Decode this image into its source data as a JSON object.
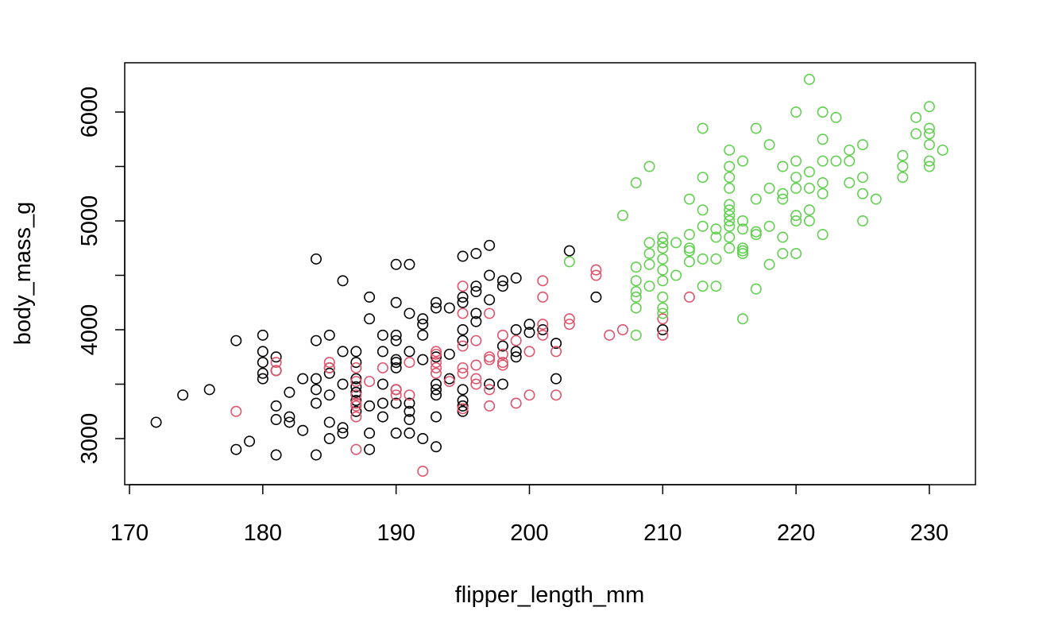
{
  "chart_data": {
    "type": "scatter",
    "title": "",
    "xlabel": "flipper_length_mm",
    "ylabel": "body_mass_g",
    "xlim": [
      170,
      232
    ],
    "ylim": [
      2600,
      6400
    ],
    "xticks": [
      170,
      180,
      190,
      200,
      210,
      220,
      230
    ],
    "yticks": [
      3000,
      4000,
      5000,
      6000
    ],
    "x_tick_labels": [
      "170",
      "180",
      "190",
      "200",
      "210",
      "220",
      "230"
    ],
    "y_tick_labels": [
      "3000",
      "4000",
      "5000",
      "6000"
    ],
    "grid": false,
    "legend": "none",
    "series": [
      {
        "color": "#000000",
        "points": [
          [
            172,
            3150
          ],
          [
            174,
            3400
          ],
          [
            176,
            3450
          ],
          [
            178,
            3900
          ],
          [
            178,
            2900
          ],
          [
            179,
            2975
          ],
          [
            180,
            3950
          ],
          [
            180,
            3800
          ],
          [
            180,
            3700
          ],
          [
            180,
            3600
          ],
          [
            180,
            3550
          ],
          [
            181,
            3750
          ],
          [
            181,
            3625
          ],
          [
            181,
            3300
          ],
          [
            181,
            3175
          ],
          [
            181,
            2850
          ],
          [
            182,
            3425
          ],
          [
            182,
            3200
          ],
          [
            182,
            3150
          ],
          [
            183,
            3550
          ],
          [
            183,
            3075
          ],
          [
            184,
            4650
          ],
          [
            184,
            3900
          ],
          [
            184,
            3550
          ],
          [
            184,
            3450
          ],
          [
            184,
            3325
          ],
          [
            184,
            2850
          ],
          [
            185,
            3950
          ],
          [
            185,
            3650
          ],
          [
            185,
            3600
          ],
          [
            185,
            3400
          ],
          [
            185,
            3150
          ],
          [
            185,
            3000
          ],
          [
            186,
            4450
          ],
          [
            186,
            3800
          ],
          [
            186,
            3500
          ],
          [
            186,
            3100
          ],
          [
            186,
            3050
          ],
          [
            187,
            3800
          ],
          [
            187,
            3700
          ],
          [
            187,
            3550
          ],
          [
            187,
            3475
          ],
          [
            187,
            3425
          ],
          [
            187,
            3350
          ],
          [
            187,
            3250
          ],
          [
            188,
            4300
          ],
          [
            188,
            4100
          ],
          [
            188,
            3300
          ],
          [
            188,
            3050
          ],
          [
            188,
            2900
          ],
          [
            189,
            3950
          ],
          [
            189,
            3800
          ],
          [
            189,
            3500
          ],
          [
            189,
            3325
          ],
          [
            189,
            3200
          ],
          [
            190,
            4600
          ],
          [
            190,
            4250
          ],
          [
            190,
            3950
          ],
          [
            190,
            3900
          ],
          [
            190,
            3725
          ],
          [
            190,
            3700
          ],
          [
            190,
            3650
          ],
          [
            190,
            3450
          ],
          [
            190,
            3325
          ],
          [
            190,
            3050
          ],
          [
            191,
            4600
          ],
          [
            191,
            4150
          ],
          [
            191,
            3800
          ],
          [
            191,
            3325
          ],
          [
            191,
            3250
          ],
          [
            191,
            3175
          ],
          [
            191,
            3050
          ],
          [
            192,
            4100
          ],
          [
            192,
            4050
          ],
          [
            192,
            3950
          ],
          [
            192,
            3725
          ],
          [
            192,
            3000
          ],
          [
            193,
            4250
          ],
          [
            193,
            4200
          ],
          [
            193,
            3750
          ],
          [
            193,
            3500
          ],
          [
            193,
            3450
          ],
          [
            193,
            3400
          ],
          [
            193,
            3200
          ],
          [
            193,
            2925
          ],
          [
            194,
            4200
          ],
          [
            194,
            3775
          ],
          [
            194,
            3550
          ],
          [
            195,
            4675
          ],
          [
            195,
            4300
          ],
          [
            195,
            4250
          ],
          [
            195,
            4000
          ],
          [
            195,
            3900
          ],
          [
            195,
            3450
          ],
          [
            195,
            3350
          ],
          [
            195,
            3300
          ],
          [
            195,
            3250
          ],
          [
            196,
            4700
          ],
          [
            196,
            4400
          ],
          [
            196,
            4350
          ],
          [
            196,
            4150
          ],
          [
            196,
            4075
          ],
          [
            197,
            4775
          ],
          [
            197,
            4500
          ],
          [
            197,
            4275
          ],
          [
            197,
            3500
          ],
          [
            198,
            4450
          ],
          [
            198,
            4400
          ],
          [
            198,
            3850
          ],
          [
            198,
            3500
          ],
          [
            199,
            4475
          ],
          [
            199,
            4000
          ],
          [
            199,
            3800
          ],
          [
            199,
            3750
          ],
          [
            200,
            4050
          ],
          [
            200,
            3975
          ],
          [
            201,
            4000
          ],
          [
            202,
            3875
          ],
          [
            202,
            3550
          ],
          [
            203,
            4725
          ],
          [
            205,
            4300
          ],
          [
            210,
            4000
          ]
        ]
      },
      {
        "color": "#df536b",
        "points": [
          [
            178,
            3250
          ],
          [
            181,
            3700
          ],
          [
            181,
            3625
          ],
          [
            185,
            3700
          ],
          [
            185,
            3650
          ],
          [
            187,
            3650
          ],
          [
            187,
            3525
          ],
          [
            187,
            3400
          ],
          [
            187,
            3325
          ],
          [
            187,
            3300
          ],
          [
            187,
            3200
          ],
          [
            187,
            2900
          ],
          [
            188,
            3525
          ],
          [
            189,
            3650
          ],
          [
            190,
            3450
          ],
          [
            190,
            3400
          ],
          [
            191,
            3700
          ],
          [
            191,
            3400
          ],
          [
            192,
            2700
          ],
          [
            193,
            3800
          ],
          [
            193,
            3775
          ],
          [
            193,
            3700
          ],
          [
            193,
            3650
          ],
          [
            193,
            3600
          ],
          [
            194,
            3525
          ],
          [
            195,
            4400
          ],
          [
            195,
            4150
          ],
          [
            195,
            3850
          ],
          [
            195,
            3650
          ],
          [
            195,
            3600
          ],
          [
            195,
            3275
          ],
          [
            196,
            3900
          ],
          [
            196,
            3675
          ],
          [
            196,
            3550
          ],
          [
            196,
            3500
          ],
          [
            197,
            4150
          ],
          [
            197,
            3750
          ],
          [
            197,
            3725
          ],
          [
            197,
            3450
          ],
          [
            197,
            3300
          ],
          [
            198,
            3950
          ],
          [
            198,
            3775
          ],
          [
            198,
            3700
          ],
          [
            198,
            3675
          ],
          [
            199,
            3900
          ],
          [
            199,
            3325
          ],
          [
            200,
            3800
          ],
          [
            200,
            3400
          ],
          [
            201,
            4450
          ],
          [
            201,
            4300
          ],
          [
            201,
            4050
          ],
          [
            201,
            3950
          ],
          [
            202,
            3800
          ],
          [
            202,
            3400
          ],
          [
            203,
            4100
          ],
          [
            203,
            4050
          ],
          [
            205,
            4550
          ],
          [
            205,
            4500
          ],
          [
            206,
            3950
          ],
          [
            207,
            4000
          ],
          [
            210,
            4800
          ],
          [
            210,
            4100
          ],
          [
            210,
            3950
          ],
          [
            212,
            4300
          ]
        ]
      },
      {
        "color": "#61d04f",
        "points": [
          [
            203,
            4625
          ],
          [
            207,
            5050
          ],
          [
            208,
            5350
          ],
          [
            208,
            4575
          ],
          [
            208,
            4450
          ],
          [
            208,
            4350
          ],
          [
            208,
            4300
          ],
          [
            208,
            4200
          ],
          [
            208,
            3950
          ],
          [
            209,
            5500
          ],
          [
            209,
            4800
          ],
          [
            209,
            4700
          ],
          [
            209,
            4600
          ],
          [
            209,
            4400
          ],
          [
            210,
            4850
          ],
          [
            210,
            4800
          ],
          [
            210,
            4750
          ],
          [
            210,
            4650
          ],
          [
            210,
            4550
          ],
          [
            210,
            4450
          ],
          [
            210,
            4300
          ],
          [
            210,
            4200
          ],
          [
            210,
            4150
          ],
          [
            211,
            4800
          ],
          [
            211,
            4500
          ],
          [
            212,
            5200
          ],
          [
            212,
            4875
          ],
          [
            212,
            4750
          ],
          [
            212,
            4725
          ],
          [
            212,
            4625
          ],
          [
            213,
            5850
          ],
          [
            213,
            5400
          ],
          [
            213,
            5100
          ],
          [
            213,
            4950
          ],
          [
            213,
            4650
          ],
          [
            213,
            4400
          ],
          [
            214,
            4925
          ],
          [
            214,
            4850
          ],
          [
            214,
            4650
          ],
          [
            214,
            4400
          ],
          [
            215,
            5650
          ],
          [
            215,
            5500
          ],
          [
            215,
            5400
          ],
          [
            215,
            5300
          ],
          [
            215,
            5150
          ],
          [
            215,
            5100
          ],
          [
            215,
            5050
          ],
          [
            215,
            5000
          ],
          [
            215,
            4950
          ],
          [
            215,
            4850
          ],
          [
            215,
            4750
          ],
          [
            216,
            5550
          ],
          [
            216,
            5000
          ],
          [
            216,
            4925
          ],
          [
            216,
            4750
          ],
          [
            216,
            4725
          ],
          [
            216,
            4700
          ],
          [
            216,
            4100
          ],
          [
            217,
            5850
          ],
          [
            217,
            5200
          ],
          [
            217,
            4900
          ],
          [
            217,
            4875
          ],
          [
            217,
            4375
          ],
          [
            218,
            5700
          ],
          [
            218,
            5300
          ],
          [
            218,
            4950
          ],
          [
            218,
            4600
          ],
          [
            219,
            5500
          ],
          [
            219,
            5250
          ],
          [
            219,
            5200
          ],
          [
            219,
            4850
          ],
          [
            219,
            4700
          ],
          [
            220,
            6000
          ],
          [
            220,
            5550
          ],
          [
            220,
            5400
          ],
          [
            220,
            5300
          ],
          [
            220,
            5050
          ],
          [
            220,
            5000
          ],
          [
            220,
            4700
          ],
          [
            221,
            6300
          ],
          [
            221,
            5450
          ],
          [
            221,
            5300
          ],
          [
            221,
            5100
          ],
          [
            221,
            5000
          ],
          [
            222,
            6000
          ],
          [
            222,
            5750
          ],
          [
            222,
            5550
          ],
          [
            222,
            5350
          ],
          [
            222,
            5250
          ],
          [
            222,
            4875
          ],
          [
            223,
            5950
          ],
          [
            223,
            5550
          ],
          [
            224,
            5650
          ],
          [
            224,
            5550
          ],
          [
            224,
            5350
          ],
          [
            225,
            5700
          ],
          [
            225,
            5400
          ],
          [
            225,
            5250
          ],
          [
            225,
            5000
          ],
          [
            226,
            5200
          ],
          [
            228,
            5600
          ],
          [
            228,
            5500
          ],
          [
            228,
            5400
          ],
          [
            229,
            5950
          ],
          [
            229,
            5800
          ],
          [
            230,
            6050
          ],
          [
            230,
            5850
          ],
          [
            230,
            5800
          ],
          [
            230,
            5700
          ],
          [
            230,
            5550
          ],
          [
            230,
            5500
          ],
          [
            231,
            5650
          ]
        ]
      }
    ]
  }
}
